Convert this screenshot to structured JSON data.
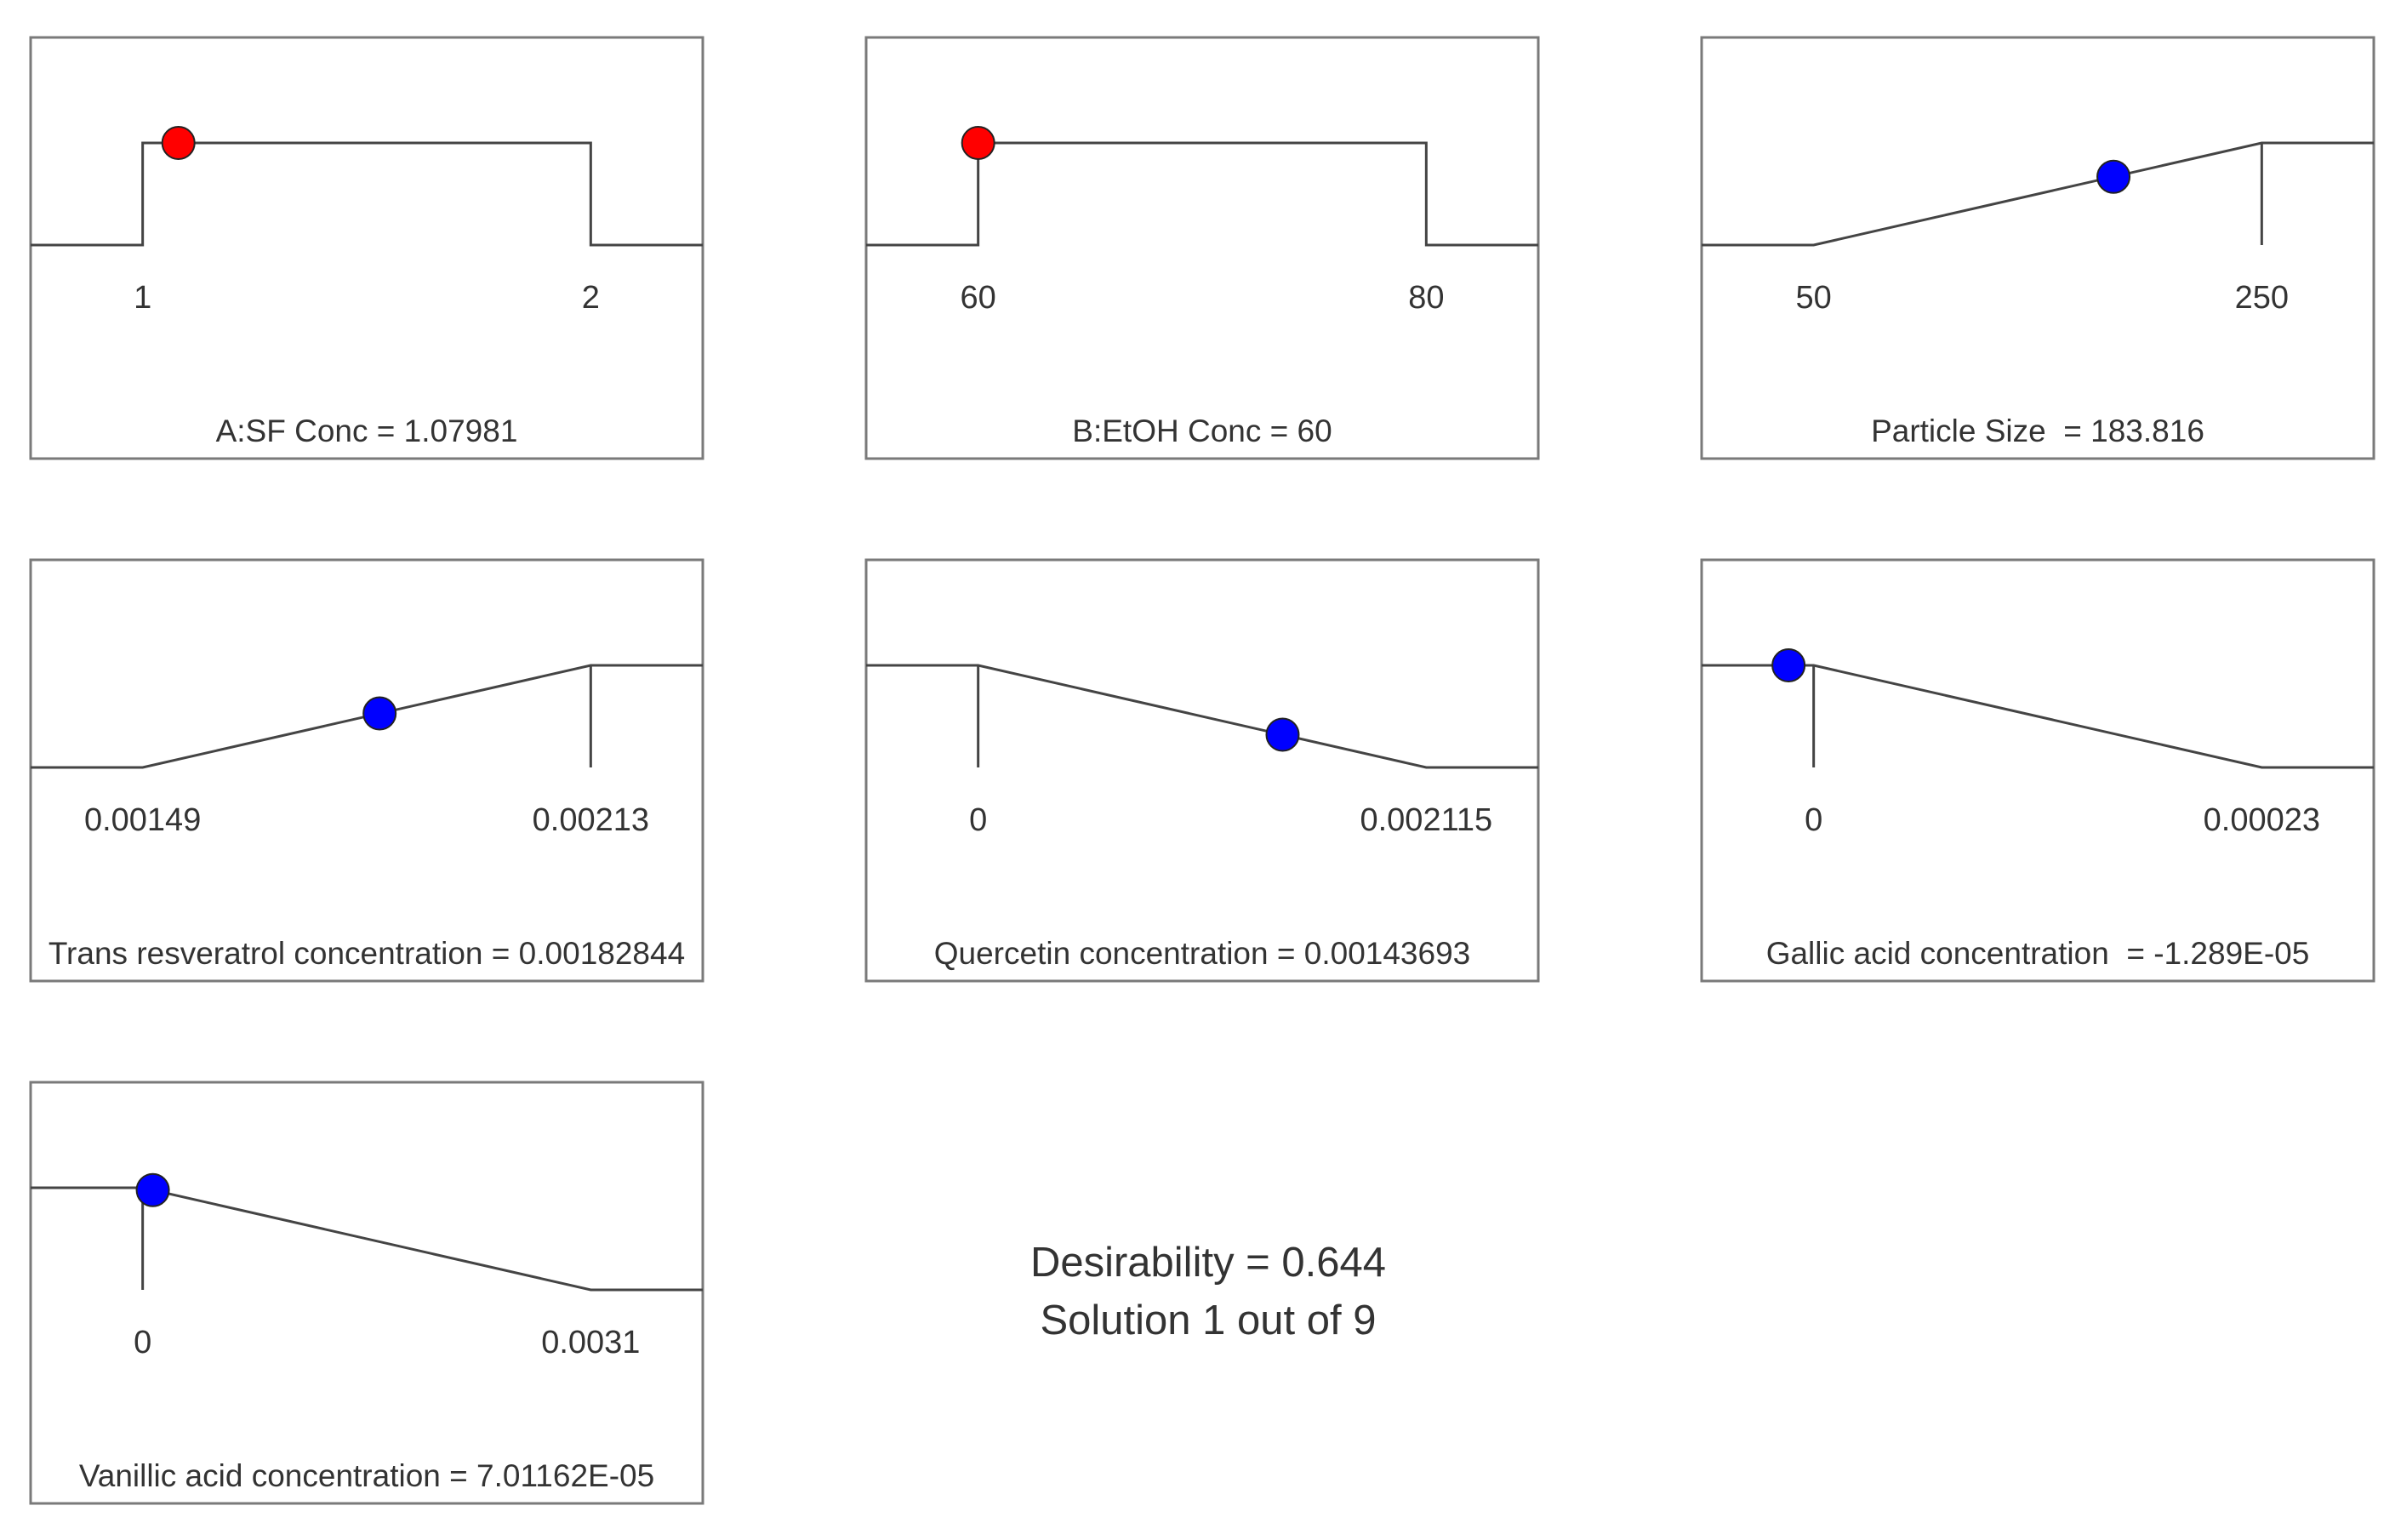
{
  "colors": {
    "frame": "#7a7a7a",
    "curve": "#444444",
    "text": "#333333",
    "factor_point": "#ff0000",
    "response_point": "#0000ff",
    "point_edge": "#222222"
  },
  "summary": {
    "desirability": "Desirability = 0.644",
    "solution": "Solution 1 out of 9"
  },
  "chart_data": [
    {
      "type": "line",
      "title": "A:SF Conc = 1.07981",
      "goal": "in range",
      "low_label": "1",
      "high_label": "2",
      "low": 1,
      "high": 2,
      "xlim": [
        0.75,
        2.25
      ],
      "point": {
        "x": 1.07981,
        "kind": "factor",
        "color": "#ff0000"
      }
    },
    {
      "type": "line",
      "title": "B:EtOH Conc = 60",
      "goal": "in range",
      "low_label": "60",
      "high_label": "80",
      "low": 60,
      "high": 80,
      "xlim": [
        55,
        85
      ],
      "point": {
        "x": 60,
        "kind": "factor",
        "color": "#ff0000"
      }
    },
    {
      "type": "line",
      "title": "Particle Size  = 183.816",
      "goal": "maximize",
      "low_label": "50",
      "high_label": "250",
      "low": 50,
      "high": 250,
      "xlim": [
        0,
        300
      ],
      "point": {
        "x": 183.816,
        "kind": "response",
        "color": "#0000ff"
      }
    },
    {
      "type": "line",
      "title": "Trans resveratrol concentration = 0.00182844",
      "goal": "maximize",
      "low_label": "0.00149",
      "high_label": "0.00213",
      "low": 0.00149,
      "high": 0.00213,
      "xlim": [
        0.00133,
        0.00229
      ],
      "point": {
        "x": 0.00182844,
        "kind": "response",
        "color": "#0000ff"
      }
    },
    {
      "type": "line",
      "title": "Quercetin concentration = 0.00143693",
      "goal": "minimize",
      "low_label": "0",
      "high_label": "0.002115",
      "low": 0,
      "high": 0.002115,
      "xlim": [
        -0.00052875,
        0.00264375
      ],
      "point": {
        "x": 0.00143693,
        "kind": "response",
        "color": "#0000ff"
      }
    },
    {
      "type": "line",
      "title": "Gallic acid concentration  = -1.289E-05",
      "goal": "minimize",
      "low_label": "0",
      "high_label": "0.00023",
      "low": 0,
      "high": 0.00023,
      "xlim": [
        -5.75e-05,
        0.0002875
      ],
      "point": {
        "x": -1.289e-05,
        "kind": "response",
        "color": "#0000ff"
      }
    },
    {
      "type": "line",
      "title": "Vanillic acid concentration = 7.01162E-05",
      "goal": "minimize",
      "low_label": "0",
      "high_label": "0.0031",
      "low": 0,
      "high": 0.0031,
      "xlim": [
        -0.000775,
        0.003875
      ],
      "point": {
        "x": 7.01162e-05,
        "kind": "response",
        "color": "#0000ff"
      }
    }
  ]
}
